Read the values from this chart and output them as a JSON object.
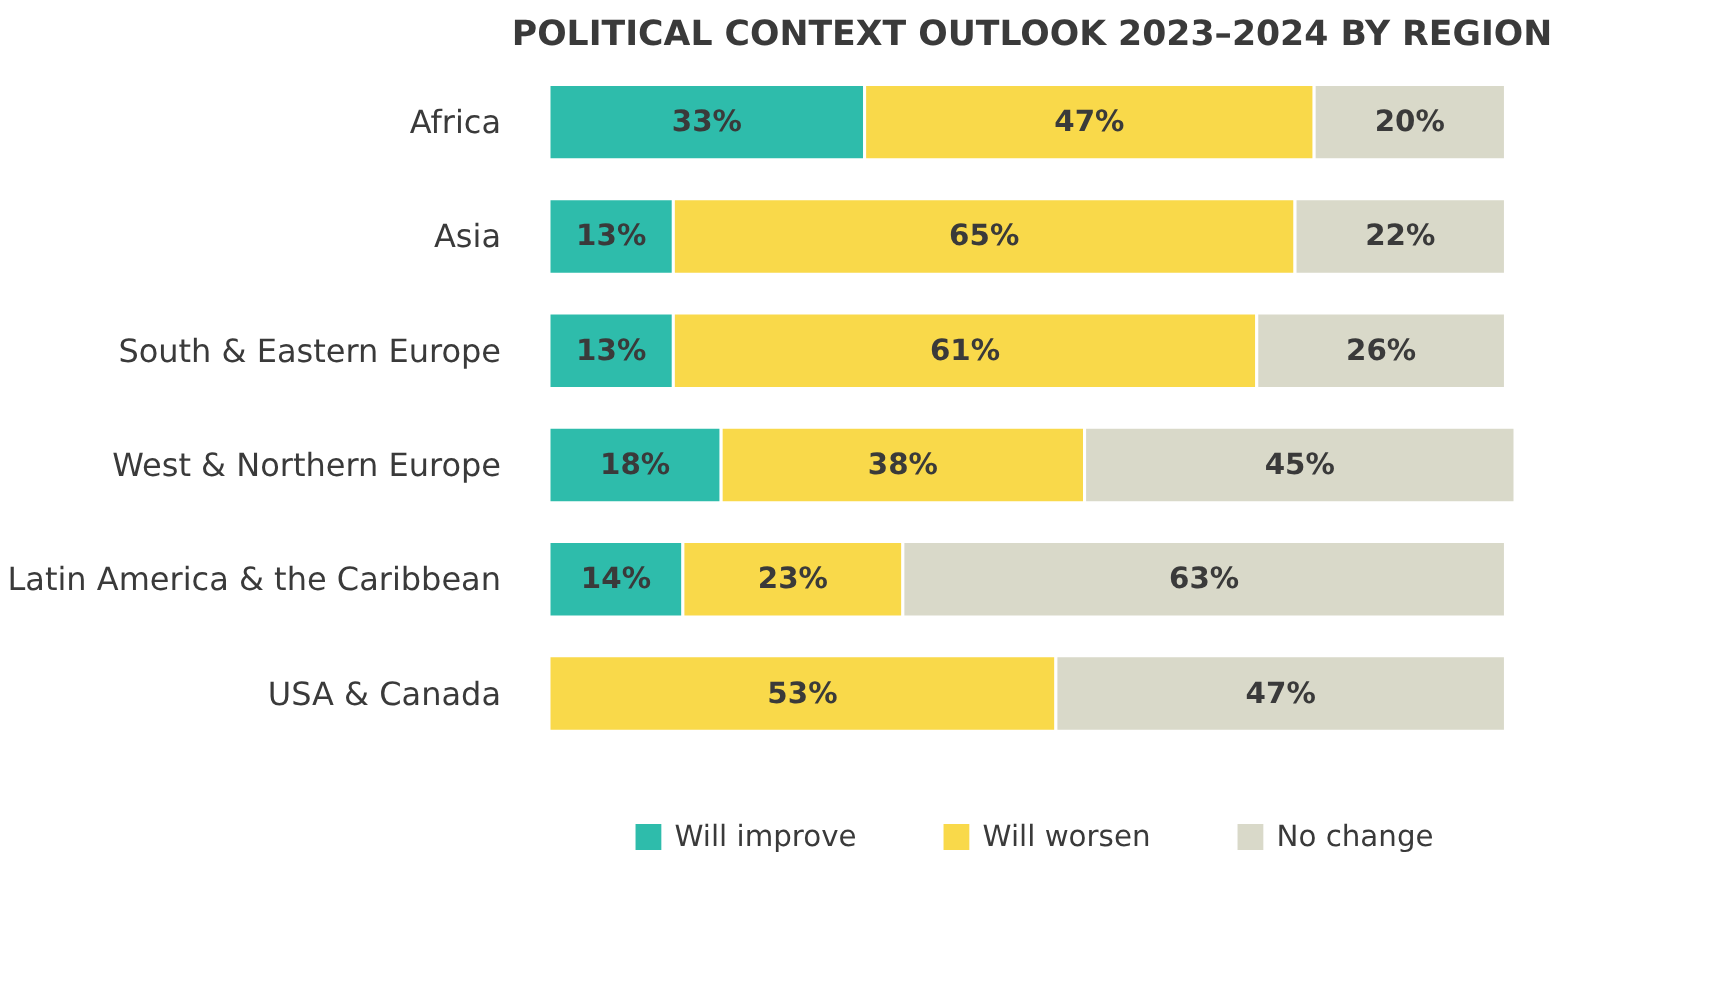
{
  "chart_data": {
    "type": "bar",
    "orientation": "horizontal",
    "stacked": true,
    "title": "POLITICAL CONTEXT OUTLOOK 2023–2024 BY REGION",
    "categories": [
      "Africa",
      "Asia",
      "South & Eastern Europe",
      "West & Northern Europe",
      "Latin America & the Caribbean",
      "USA & Canada"
    ],
    "series": [
      {
        "name": "Will improve",
        "color": "#2ebcab",
        "values": [
          33,
          13,
          13,
          18,
          14,
          0
        ],
        "value_labels": [
          "33%",
          "13%",
          "13%",
          "18%",
          "14%",
          null
        ]
      },
      {
        "name": "Will worsen",
        "color": "#f9d94a",
        "values": [
          47,
          65,
          61,
          38,
          23,
          53
        ],
        "value_labels": [
          "47%",
          "65%",
          "61%",
          "38%",
          "23%",
          "53%"
        ]
      },
      {
        "name": "No change",
        "color": "#d9d9c9",
        "values": [
          20,
          22,
          26,
          45,
          63,
          47
        ],
        "value_labels": [
          "20%",
          "22%",
          "26%",
          "45%",
          "63%",
          "47%"
        ]
      }
    ],
    "legend": "bottom",
    "tick_labels": "y"
  }
}
